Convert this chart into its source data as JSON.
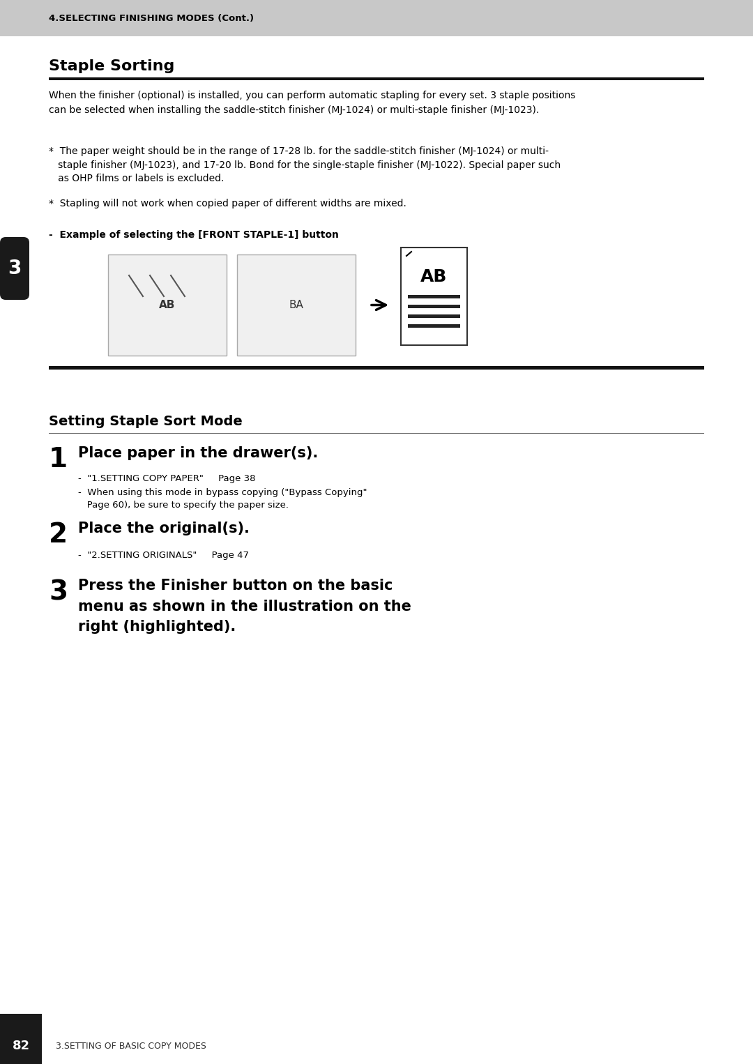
{
  "page_bg": "#ffffff",
  "header_bg": "#c8c8c8",
  "header_text": "4.SELECTING FINISHING MODES (Cont.)",
  "header_text_color": "#000000",
  "footer_bg": "#ffffff",
  "footer_text": "3.SETTING OF BASIC COPY MODES",
  "footer_page": "82",
  "section_tab_bg": "#1a1a1a",
  "section_tab_text": "3",
  "section1_title": "Staple Sorting",
  "section1_rule_color": "#000000",
  "body_text_color": "#000000",
  "para1": "When the finisher (optional) is installed, you can perform automatic stapling for every set. 3 staple positions\ncan be selected when installing the saddle-stitch finisher (MJ-1024) or multi-staple finisher (MJ-1023).",
  "bullet1": "*  The paper weight should be in the range of 17-28 lb. for the saddle-stitch finisher (MJ-1024) or multi-\n   staple finisher (MJ-1023), and 17-20 lb. Bond for the single-staple finisher (MJ-1022). Special paper such\n   as OHP films or labels is excluded.",
  "bullet2": "*  Stapling will not work when copied paper of different widths are mixed.",
  "example_label": "-  Example of selecting the [FRONT STAPLE-1] button",
  "section2_title": "Setting Staple Sort Mode",
  "step1_num": "1",
  "step1_text": "Place paper in the drawer(s).",
  "step1_sub1": "-  \"1.SETTING COPY PAPER\"     Page 38",
  "step1_sub2": "-  When using this mode in bypass copying (\"Bypass Copying\"\n   Page 60), be sure to specify the paper size.",
  "step2_num": "2",
  "step2_text": "Place the original(s).",
  "step2_sub1": "-  \"2.SETTING ORIGINALS\"     Page 47",
  "step3_num": "3",
  "step3_text": "Press the Finisher button on the basic\nmenu as shown in the illustration on the\nright (highlighted)."
}
